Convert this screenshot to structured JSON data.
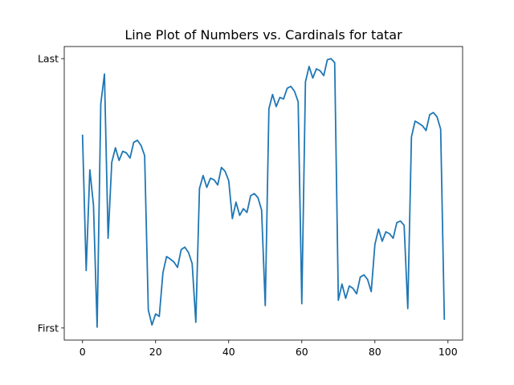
{
  "chart_data": {
    "type": "line",
    "title": "Line Plot of Numbers vs. Cardinals for tatar",
    "xlabel": "",
    "ylabel": "",
    "xlim": [
      -5,
      104
    ],
    "ylim": [
      -0.045,
      1.045
    ],
    "x_ticks": [
      0,
      20,
      40,
      60,
      80,
      100
    ],
    "y_ticks": [
      {
        "value": 0,
        "label": "First"
      },
      {
        "value": 1,
        "label": "Last"
      }
    ],
    "grid": false,
    "legend": "none",
    "series": [
      {
        "color": "#1f77b4",
        "x": [
          0,
          1,
          2,
          3,
          4,
          5,
          6,
          7,
          8,
          9,
          10,
          11,
          12,
          13,
          14,
          15,
          16,
          17,
          18,
          19,
          20,
          21,
          22,
          23,
          24,
          25,
          26,
          27,
          28,
          29,
          30,
          31,
          32,
          33,
          34,
          35,
          36,
          37,
          38,
          39,
          40,
          41,
          42,
          43,
          44,
          45,
          46,
          47,
          48,
          49,
          50,
          51,
          52,
          53,
          54,
          55,
          56,
          57,
          58,
          59,
          60,
          61,
          62,
          63,
          64,
          65,
          66,
          67,
          68,
          69,
          70,
          71,
          72,
          73,
          74,
          75,
          76,
          77,
          78,
          79,
          80,
          81,
          82,
          83,
          84,
          85,
          86,
          87,
          88,
          89,
          90,
          91,
          92,
          93,
          94,
          95,
          96,
          97,
          98,
          99
        ],
        "y": [
          0.715,
          0.213,
          0.587,
          0.456,
          0.003,
          0.832,
          0.943,
          0.333,
          0.615,
          0.669,
          0.622,
          0.656,
          0.65,
          0.631,
          0.689,
          0.697,
          0.678,
          0.64,
          0.067,
          0.011,
          0.052,
          0.043,
          0.205,
          0.265,
          0.256,
          0.245,
          0.225,
          0.291,
          0.3,
          0.28,
          0.239,
          0.021,
          0.518,
          0.566,
          0.522,
          0.556,
          0.55,
          0.531,
          0.596,
          0.582,
          0.547,
          0.406,
          0.467,
          0.418,
          0.443,
          0.429,
          0.491,
          0.499,
          0.484,
          0.438,
          0.083,
          0.814,
          0.867,
          0.822,
          0.856,
          0.85,
          0.89,
          0.897,
          0.879,
          0.84,
          0.09,
          0.914,
          0.971,
          0.928,
          0.962,
          0.955,
          0.937,
          0.996,
          1.0,
          0.985,
          0.103,
          0.163,
          0.11,
          0.156,
          0.147,
          0.127,
          0.189,
          0.197,
          0.18,
          0.135,
          0.31,
          0.367,
          0.322,
          0.357,
          0.35,
          0.333,
          0.391,
          0.397,
          0.381,
          0.072,
          0.709,
          0.768,
          0.76,
          0.751,
          0.733,
          0.792,
          0.8,
          0.784,
          0.738,
          0.033
        ]
      }
    ]
  }
}
